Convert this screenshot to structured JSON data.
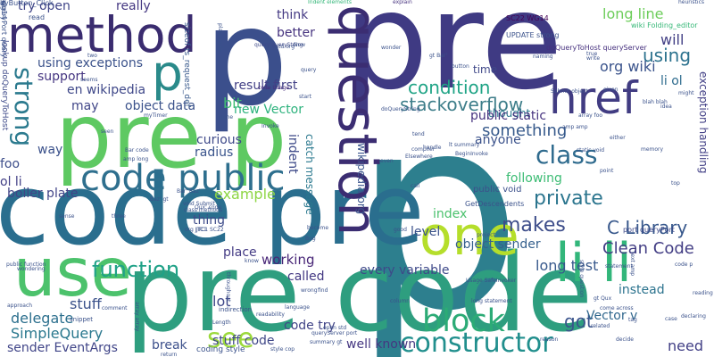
{
  "words": [
    {
      "text": "p",
      "color": "#3b4f8c",
      "vertical": false
    },
    {
      "text": "pre",
      "color": "#3f3a83",
      "vertical": false
    },
    {
      "text": "p",
      "color": "#2d7f8e",
      "vertical": false
    },
    {
      "text": "pre code",
      "color": "#2e9e7f",
      "vertical": false
    },
    {
      "text": "code pre",
      "color": "#2a6e8e",
      "vertical": false
    },
    {
      "text": "pre p",
      "color": "#5ec962",
      "vertical": false
    },
    {
      "text": "use",
      "color": "#4cc26c",
      "vertical": false
    },
    {
      "text": "one",
      "color": "#b5de2b",
      "vertical": false
    },
    {
      "text": "method",
      "color": "#3a2c6f",
      "vertical": false
    },
    {
      "text": "href",
      "color": "#413c82",
      "vertical": false
    },
    {
      "text": "question",
      "color": "#3b2d72",
      "vertical": true
    },
    {
      "text": "code public",
      "color": "#2e6f8e",
      "vertical": false
    },
    {
      "text": "li li",
      "color": "#32b67a",
      "vertical": false
    },
    {
      "text": "p",
      "color": "#2a8a8a",
      "vertical": false
    },
    {
      "text": "class",
      "color": "#2f6b8e",
      "vertical": false
    },
    {
      "text": "strong",
      "color": "#2b7a8e",
      "vertical": true
    },
    {
      "text": "block",
      "color": "#2cab76",
      "vertical": false
    },
    {
      "text": "constructor",
      "color": "#218f8d",
      "vertical": false
    },
    {
      "text": "function",
      "color": "#1fa187",
      "vertical": false
    },
    {
      "text": "stackoverflow",
      "color": "#3e7e8a",
      "vertical": false
    },
    {
      "text": "condition",
      "color": "#20a486",
      "vertical": false
    },
    {
      "text": "long line",
      "color": "#6ccd5a",
      "vertical": false
    },
    {
      "text": "using",
      "color": "#2c728e",
      "vertical": false
    },
    {
      "text": "private",
      "color": "#2b758e",
      "vertical": false
    },
    {
      "text": "following",
      "color": "#3cbc74",
      "vertical": false
    },
    {
      "text": "something",
      "color": "#375a8c",
      "vertical": false
    },
    {
      "text": "makes",
      "color": "#3d4d8a",
      "vertical": false
    },
    {
      "text": "C Library",
      "color": "#38588c",
      "vertical": false
    },
    {
      "text": "Clean Code",
      "color": "#433e85",
      "vertical": false
    },
    {
      "text": "working",
      "color": "#482677",
      "vertical": false
    },
    {
      "text": "see",
      "color": "#9bd93c",
      "vertical": false
    },
    {
      "text": "lot",
      "color": "#3f4889",
      "vertical": false
    },
    {
      "text": "got",
      "color": "#3a548c",
      "vertical": false
    },
    {
      "text": "need",
      "color": "#424086",
      "vertical": false
    },
    {
      "text": "radius",
      "color": "#3a548c",
      "vertical": false
    },
    {
      "text": "example",
      "color": "#8ed645",
      "vertical": false
    },
    {
      "text": "boiler plate",
      "color": "#414487",
      "vertical": false
    },
    {
      "text": "stuff",
      "color": "#3b528b",
      "vertical": false
    },
    {
      "text": "stuff code",
      "color": "#3f4788",
      "vertical": false
    },
    {
      "text": "delegate",
      "color": "#2d708e",
      "vertical": false
    },
    {
      "text": "SimpleQuery",
      "color": "#2a788e",
      "vertical": false
    },
    {
      "text": "sender EventArgs",
      "color": "#404588",
      "vertical": false
    },
    {
      "text": "break",
      "color": "#3c508b",
      "vertical": false
    },
    {
      "text": "code try",
      "color": "#414487",
      "vertical": false
    },
    {
      "text": "well known",
      "color": "#453781",
      "vertical": false
    },
    {
      "text": "Vector v",
      "color": "#31688e",
      "vertical": false
    },
    {
      "text": "instead",
      "color": "#2c738e",
      "vertical": false
    },
    {
      "text": "long test",
      "color": "#38598c",
      "vertical": false
    },
    {
      "text": "every variable",
      "color": "#3e4989",
      "vertical": false
    },
    {
      "text": "object sender",
      "color": "#35608d",
      "vertical": false
    },
    {
      "text": "level",
      "color": "#3b528b",
      "vertical": false
    },
    {
      "text": "index",
      "color": "#4ac16d",
      "vertical": false
    },
    {
      "text": "called",
      "color": "#443983",
      "vertical": false
    },
    {
      "text": "place",
      "color": "#443b84",
      "vertical": false
    },
    {
      "text": "thing",
      "color": "#3e4c8a",
      "vertical": false
    },
    {
      "text": "foo",
      "color": "#3d4e8a",
      "vertical": false
    },
    {
      "text": "ol li",
      "color": "#424086",
      "vertical": false
    },
    {
      "text": "way",
      "color": "#3b518b",
      "vertical": false
    },
    {
      "text": "result first",
      "color": "#424086",
      "vertical": false
    },
    {
      "text": "bit",
      "color": "#40bd72",
      "vertical": false
    },
    {
      "text": "new Vector",
      "color": "#2db27d",
      "vertical": false
    },
    {
      "text": "object data",
      "color": "#3b528b",
      "vertical": false
    },
    {
      "text": "may",
      "color": "#404688",
      "vertical": false
    },
    {
      "text": "en wikipedia",
      "color": "#3f4889",
      "vertical": false
    },
    {
      "text": "support",
      "color": "#453581",
      "vertical": false
    },
    {
      "text": "using exceptions",
      "color": "#3b528b",
      "vertical": false
    },
    {
      "text": "try open",
      "color": "#404588",
      "vertical": false
    },
    {
      "text": "really",
      "color": "#453882",
      "vertical": false
    },
    {
      "text": "think",
      "color": "#443983",
      "vertical": false
    },
    {
      "text": "better",
      "color": "#46337f",
      "vertical": false
    },
    {
      "text": "time",
      "color": "#3f4889",
      "vertical": false
    },
    {
      "text": "thought",
      "color": "#2a788e",
      "vertical": false
    },
    {
      "text": "public static",
      "color": "#46337f",
      "vertical": false
    },
    {
      "text": "anyone",
      "color": "#3b528b",
      "vertical": false
    },
    {
      "text": "will",
      "color": "#423f85",
      "vertical": false
    },
    {
      "text": "org wiki",
      "color": "#3a538b",
      "vertical": false
    },
    {
      "text": "li ol",
      "color": "#2f6c8e",
      "vertical": false
    },
    {
      "text": "exception handling",
      "color": "#424086",
      "vertical": true
    },
    {
      "text": "indent",
      "color": "#3e4a89",
      "vertical": true
    },
    {
      "text": "catch message",
      "color": "#2a788e",
      "vertical": true
    },
    {
      "text": "wikipedia org",
      "color": "#3a548c",
      "vertical": true
    },
    {
      "text": "curious",
      "color": "#3e4989",
      "vertical": false
    },
    {
      "text": "public void",
      "color": "#3c508b",
      "vertical": false
    },
    {
      "text": "lookup doQueryToHost",
      "color": "#3e4a89",
      "vertical": true
    },
    {
      "text": "sizeof ts_request_def",
      "color": "#38598c",
      "vertical": true
    },
    {
      "text": "wiki Folding_editor",
      "color": "#37b878",
      "vertical": false
    },
    {
      "text": "doQueryToHost queryServer",
      "color": "#46307e",
      "vertical": false
    },
    {
      "text": "SC22 WG14",
      "color": "#440154",
      "vertical": false
    },
    {
      "text": "UPDATE strong",
      "color": "#3b528b",
      "vertical": false
    },
    {
      "text": "query queryString",
      "color": "#3e4989",
      "vertical": false
    },
    {
      "text": "Indent elements",
      "color": "#35b779",
      "vertical": false
    },
    {
      "text": "heuristics",
      "color": "#3b528b",
      "vertical": false
    },
    {
      "text": "explain",
      "color": "#46327e",
      "vertical": false
    },
    {
      "text": "read",
      "color": "#3b528b",
      "vertical": false
    },
    {
      "text": "plate code",
      "color": "#3b528b",
      "vertical": true
    },
    {
      "text": "code Usage",
      "color": "#472d7b",
      "vertical": false
    },
    {
      "text": "port queryPort",
      "color": "#3e4989",
      "vertical": false
    },
    {
      "text": "GetDescendents",
      "color": "#3b528b",
      "vertical": false
    },
    {
      "text": "BeginInvoke",
      "color": "#3b528b",
      "vertical": false
    },
    {
      "text": "Usage SafeInvoker",
      "color": "#3b528b",
      "vertical": false
    },
    {
      "text": "class methods",
      "color": "#3b528b",
      "vertical": false
    },
    {
      "text": "JTC1 SC22",
      "color": "#3b528b",
      "vertical": false
    },
    {
      "text": "org JTC1",
      "color": "#3b528b",
      "vertical": false
    },
    {
      "text": "void Submit",
      "color": "#3b528b",
      "vertical": false
    },
    {
      "text": "Bar code",
      "color": "#3b528b",
      "vertical": false
    },
    {
      "text": "amp long",
      "color": "#3b528b",
      "vertical": false
    },
    {
      "text": "coding style",
      "color": "#3b528b",
      "vertical": false
    },
    {
      "text": "indirection",
      "color": "#3b528b",
      "vertical": false
    },
    {
      "text": "snippet",
      "color": "#3b528b",
      "vertical": false
    },
    {
      "text": "public function",
      "color": "#3b528b",
      "vertical": false
    },
    {
      "text": "approach",
      "color": "#3b528b",
      "vertical": false
    },
    {
      "text": "comment",
      "color": "#3b528b",
      "vertical": false
    },
    {
      "text": "array array",
      "color": "#3b528b",
      "vertical": true
    },
    {
      "text": "return",
      "color": "#3b528b",
      "vertical": false
    },
    {
      "text": "language",
      "color": "#3b528b",
      "vertical": false
    },
    {
      "text": "queryServer port",
      "color": "#3b528b",
      "vertical": false
    },
    {
      "text": "summary gt",
      "color": "#3b528b",
      "vertical": false
    },
    {
      "text": "style cop",
      "color": "#3b528b",
      "vertical": false
    },
    {
      "text": "readability",
      "color": "#3b528b",
      "vertical": false
    },
    {
      "text": "Length",
      "color": "#3b528b",
      "vertical": false
    },
    {
      "text": "open std",
      "color": "#3b528b",
      "vertical": false
    },
    {
      "text": "wrong",
      "color": "#3b528b",
      "vertical": false
    },
    {
      "text": "find",
      "color": "#3b528b",
      "vertical": false
    },
    {
      "text": "reason",
      "color": "#3b528b",
      "vertical": false
    },
    {
      "text": "decide",
      "color": "#3b528b",
      "vertical": false
    },
    {
      "text": "related",
      "color": "#3b528b",
      "vertical": false
    },
    {
      "text": "come across",
      "color": "#3b528b",
      "vertical": false
    },
    {
      "text": "declaring",
      "color": "#3b528b",
      "vertical": false
    },
    {
      "text": "Bar' Baz'",
      "color": "#3b528b",
      "vertical": false
    },
    {
      "text": "Qux' code",
      "color": "#3b528b",
      "vertical": false
    },
    {
      "text": "Baz' gt",
      "color": "#3b528b",
      "vertical": false
    },
    {
      "text": "myTimer",
      "color": "#3b528b",
      "vertical": false
    },
    {
      "text": "Invoke",
      "color": "#3b528b",
      "vertical": false
    },
    {
      "text": "compiler",
      "color": "#3b528b",
      "vertical": false
    },
    {
      "text": "Elsewhere",
      "color": "#3b528b",
      "vertical": false
    },
    {
      "text": "handle",
      "color": "#3b528b",
      "vertical": false
    },
    {
      "text": "tend",
      "color": "#3b528b",
      "vertical": false
    },
    {
      "text": "call",
      "color": "#3b528b",
      "vertical": false
    },
    {
      "text": "project",
      "color": "#3b528b",
      "vertical": false
    },
    {
      "text": "static void",
      "color": "#3b528b",
      "vertical": false
    },
    {
      "text": "amp amp",
      "color": "#3b528b",
      "vertical": false
    },
    {
      "text": "array foo",
      "color": "#3b528b",
      "vertical": false
    },
    {
      "text": "either",
      "color": "#3b528b",
      "vertical": false
    },
    {
      "text": "memory",
      "color": "#3b528b",
      "vertical": false
    },
    {
      "text": "point",
      "color": "#3b528b",
      "vertical": false
    },
    {
      "text": "top",
      "color": "#3b528b",
      "vertical": false
    },
    {
      "text": "might",
      "color": "#3b528b",
      "vertical": false
    },
    {
      "text": "blah blah",
      "color": "#3b528b",
      "vertical": false
    },
    {
      "text": "idea",
      "color": "#3b528b",
      "vertical": false
    },
    {
      "text": "Submit object",
      "color": "#3b528b",
      "vertical": false
    },
    {
      "text": "given",
      "color": "#3b528b",
      "vertical": false
    },
    {
      "text": "naming",
      "color": "#3b528b",
      "vertical": false
    },
    {
      "text": "write",
      "color": "#3b528b",
      "vertical": false
    },
    {
      "text": "true",
      "color": "#3b528b",
      "vertical": false
    },
    {
      "text": "wonder",
      "color": "#3b528b",
      "vertical": false
    },
    {
      "text": "button",
      "color": "#3b528b",
      "vertical": false
    },
    {
      "text": "gt Bar'",
      "color": "#3b528b",
      "vertical": false
    },
    {
      "text": "std org",
      "color": "#3b528b",
      "vertical": false
    },
    {
      "text": "query",
      "color": "#3b528b",
      "vertical": false
    },
    {
      "text": "start",
      "color": "#3b528b",
      "vertical": false
    },
    {
      "text": "obj",
      "color": "#3b528b",
      "vertical": false
    },
    {
      "text": "doQueryString",
      "color": "#3b528b",
      "vertical": false
    },
    {
      "text": "name",
      "color": "#3b528b",
      "vertical": false
    },
    {
      "text": "seen",
      "color": "#3b528b",
      "vertical": false
    },
    {
      "text": "two",
      "color": "#3b528b",
      "vertical": false
    },
    {
      "text": "seems",
      "color": "#3b528b",
      "vertical": false
    },
    {
      "text": "become",
      "color": "#3b528b",
      "vertical": false
    },
    {
      "text": "sense",
      "color": "#3b528b",
      "vertical": false
    },
    {
      "text": "three",
      "color": "#3b528b",
      "vertical": false
    },
    {
      "text": "throughout",
      "color": "#3b528b",
      "vertical": true
    },
    {
      "text": "know",
      "color": "#3b528b",
      "vertical": false
    },
    {
      "text": "Bug",
      "color": "#3b528b",
      "vertical": false
    },
    {
      "text": "lt summary",
      "color": "#3b528b",
      "vertical": false
    },
    {
      "text": "gt Qux",
      "color": "#3b528b",
      "vertical": false
    },
    {
      "text": "tag",
      "color": "#3b528b",
      "vertical": false
    },
    {
      "text": "case",
      "color": "#3b528b",
      "vertical": false
    },
    {
      "text": "code p",
      "color": "#3b528b",
      "vertical": false
    },
    {
      "text": "statement",
      "color": "#3b528b",
      "vertical": false
    },
    {
      "text": "long statement",
      "color": "#3b528b",
      "vertical": false
    },
    {
      "text": "reading",
      "color": "#3b528b",
      "vertical": false
    },
    {
      "text": "Now",
      "color": "#3b528b",
      "vertical": false
    },
    {
      "text": "even",
      "color": "#3b528b",
      "vertical": false
    },
    {
      "text": "good",
      "color": "#3b528b",
      "vertical": false
    },
    {
      "text": "wondering",
      "color": "#3b528b",
      "vertical": false
    },
    {
      "text": "column",
      "color": "#3b528b",
      "vertical": false
    },
    {
      "text": "style question",
      "color": "#3b528b",
      "vertical": true
    },
    {
      "text": "text amp",
      "color": "#3b528b",
      "vertical": true
    },
    {
      "text": "queryPort query",
      "color": "#3b528b",
      "vertical": true
    },
    {
      "text": "wg14",
      "color": "#3b528b",
      "vertical": true
    },
    {
      "text": "lt",
      "color": "#3b528b",
      "vertical": false
    },
    {
      "text": "eyButton_Click",
      "color": "#3b528b",
      "vertical": false
    }
  ]
}
